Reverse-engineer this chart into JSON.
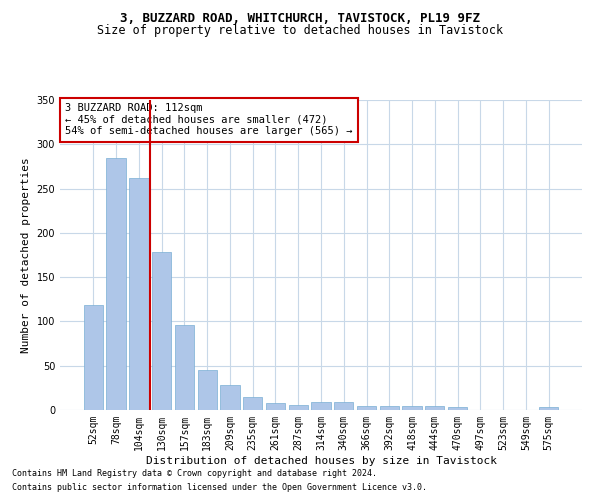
{
  "title1": "3, BUZZARD ROAD, WHITCHURCH, TAVISTOCK, PL19 9FZ",
  "title2": "Size of property relative to detached houses in Tavistock",
  "xlabel": "Distribution of detached houses by size in Tavistock",
  "ylabel": "Number of detached properties",
  "footer1": "Contains HM Land Registry data © Crown copyright and database right 2024.",
  "footer2": "Contains public sector information licensed under the Open Government Licence v3.0.",
  "annotation_line1": "3 BUZZARD ROAD: 112sqm",
  "annotation_line2": "← 45% of detached houses are smaller (472)",
  "annotation_line3": "54% of semi-detached houses are larger (565) →",
  "bar_color": "#aec6e8",
  "bar_edge_color": "#7aafd4",
  "vline_color": "#cc0000",
  "background_color": "#ffffff",
  "grid_color": "#c8d8e8",
  "categories": [
    "52sqm",
    "78sqm",
    "104sqm",
    "130sqm",
    "157sqm",
    "183sqm",
    "209sqm",
    "235sqm",
    "261sqm",
    "287sqm",
    "314sqm",
    "340sqm",
    "366sqm",
    "392sqm",
    "418sqm",
    "444sqm",
    "470sqm",
    "497sqm",
    "523sqm",
    "549sqm",
    "575sqm"
  ],
  "values": [
    119,
    285,
    262,
    178,
    96,
    45,
    28,
    15,
    8,
    6,
    9,
    9,
    5,
    5,
    5,
    4,
    3,
    0,
    0,
    0,
    3
  ],
  "ylim": [
    0,
    350
  ],
  "yticks": [
    0,
    50,
    100,
    150,
    200,
    250,
    300,
    350
  ],
  "vline_x_index": 2.5,
  "title1_fontsize": 9,
  "title2_fontsize": 8.5,
  "xlabel_fontsize": 8,
  "ylabel_fontsize": 8,
  "tick_fontsize": 7,
  "annotation_fontsize": 7.5,
  "footer_fontsize": 6
}
